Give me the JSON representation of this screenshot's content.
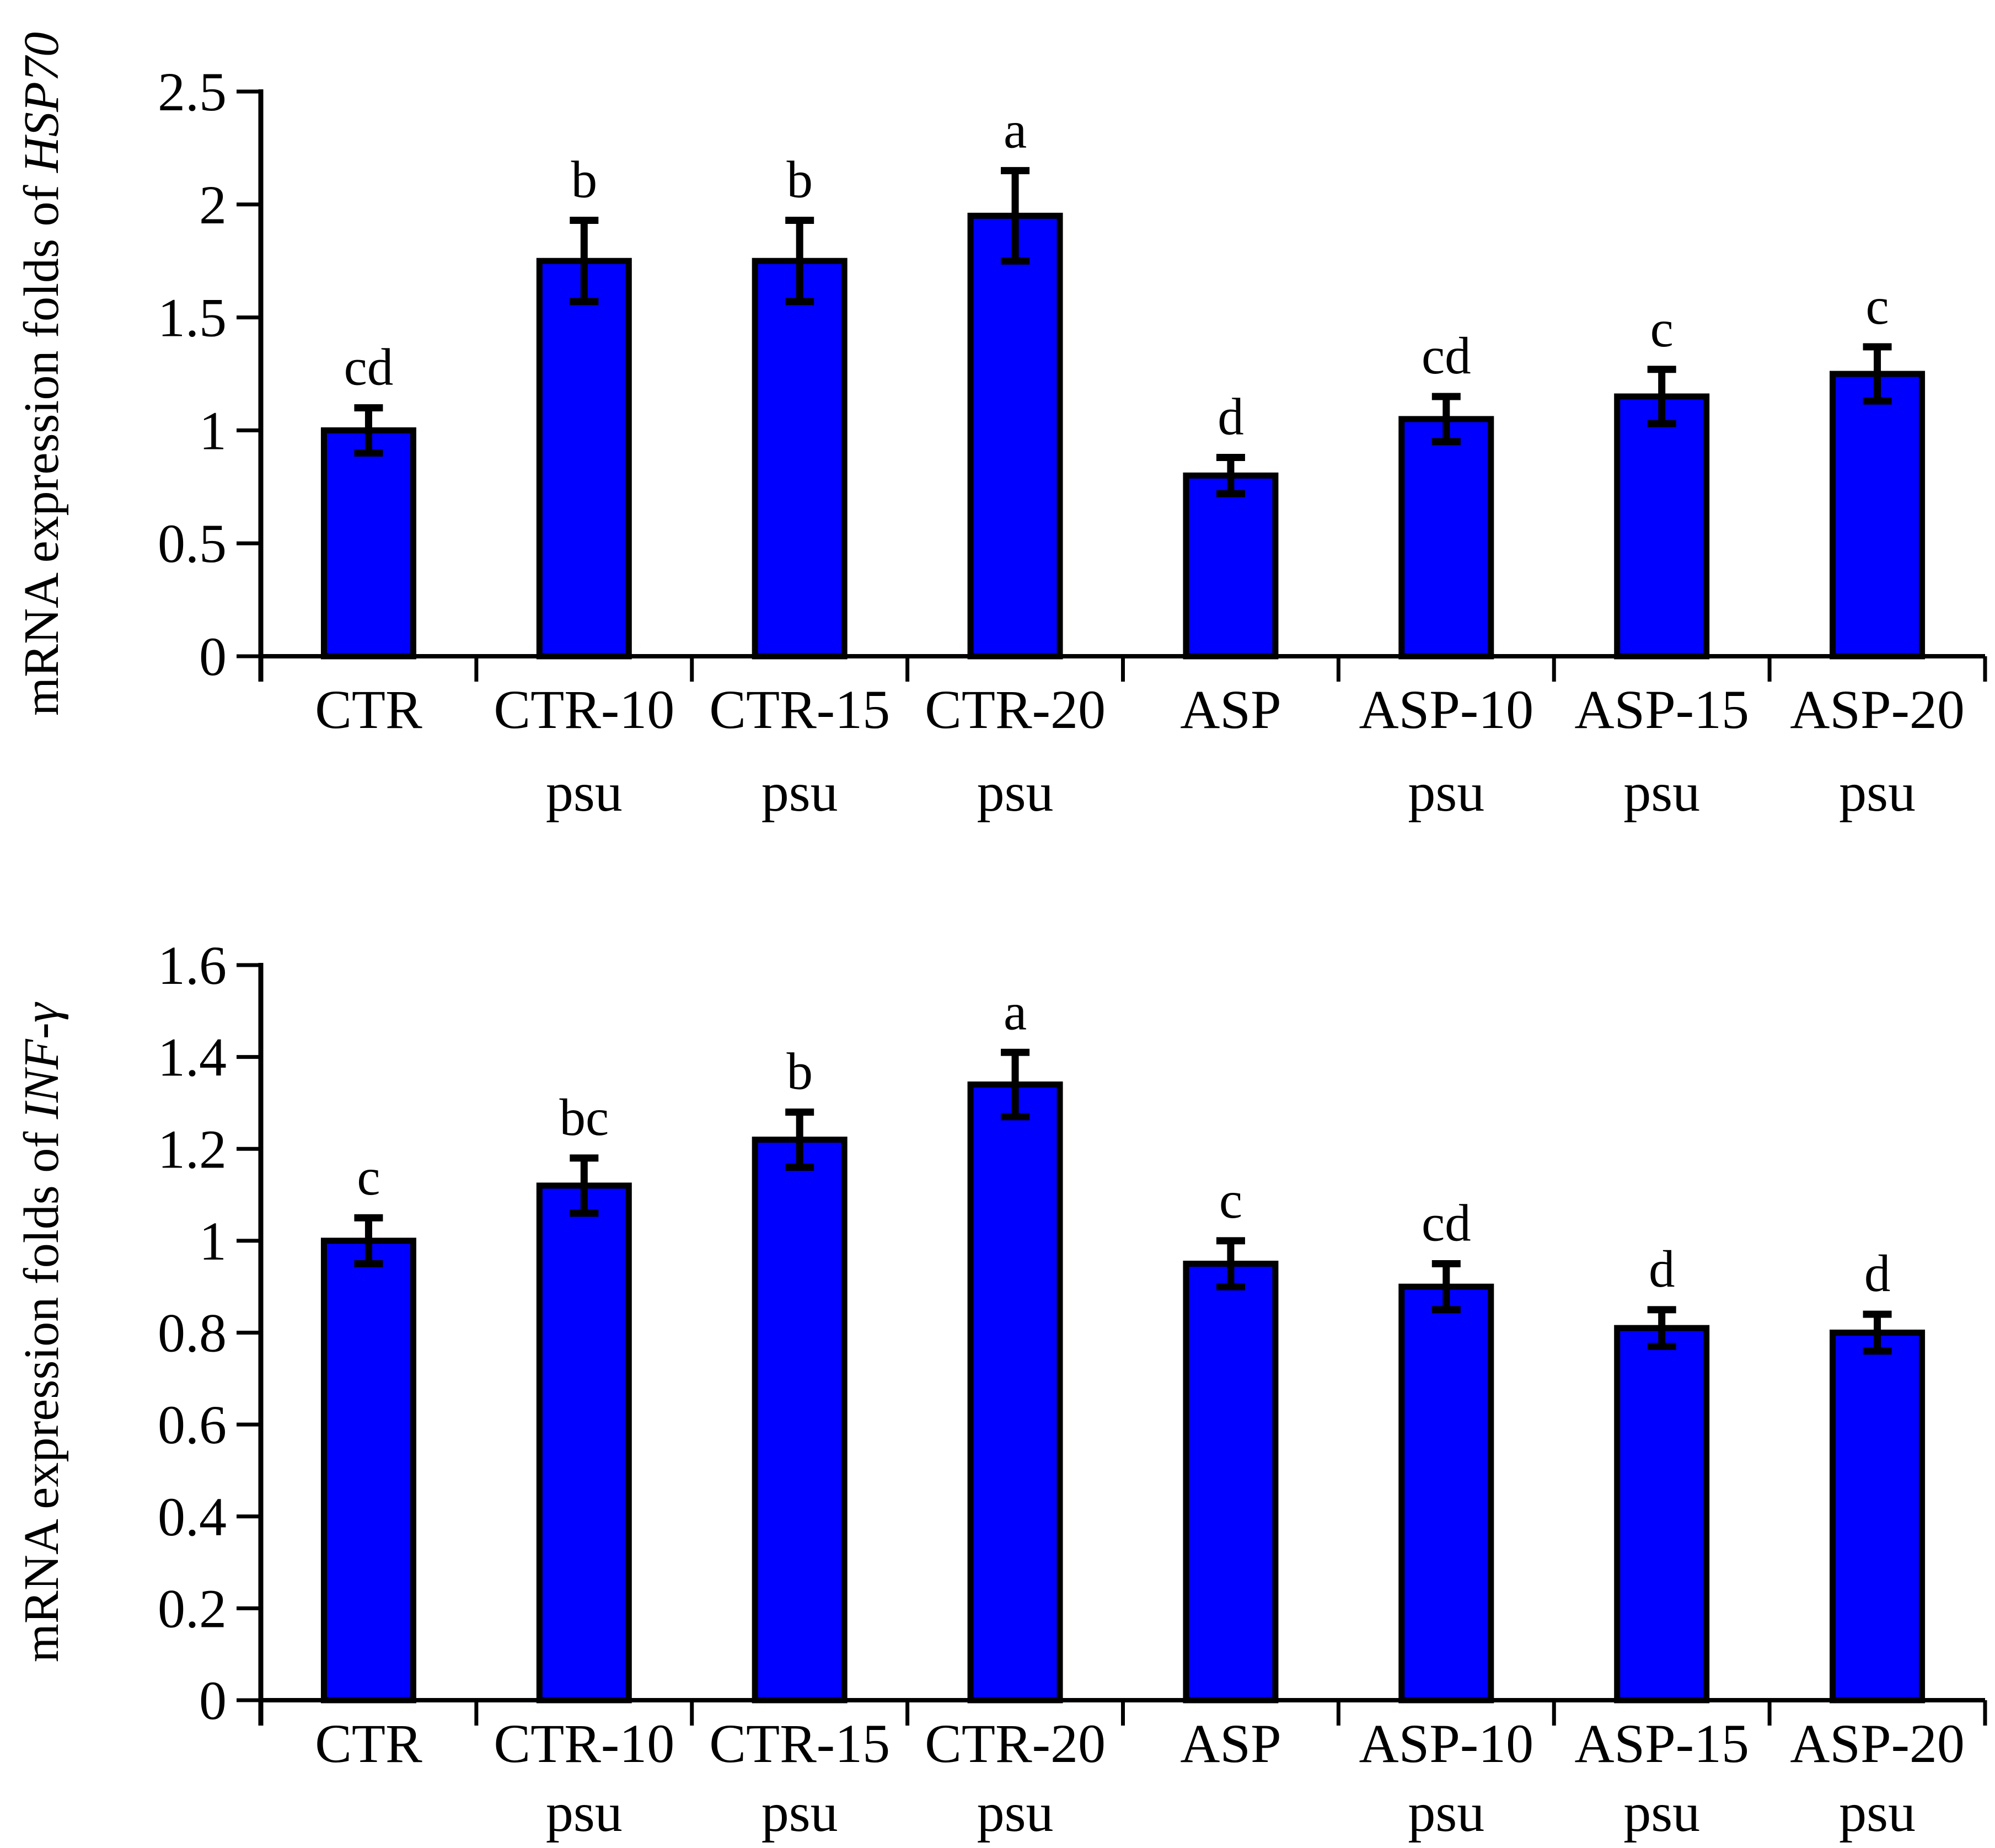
{
  "page": {
    "background": "#ffffff",
    "text_color": "#000000"
  },
  "chart_data": [
    {
      "type": "bar",
      "name": "hsp70",
      "title": "",
      "ylabel_prefix": "mRNA expression folds of ",
      "ylabel_italic": "HSP70",
      "xlabel": "",
      "categories": [
        [
          "CTR"
        ],
        [
          "CTR-10",
          "psu"
        ],
        [
          "CTR-15",
          "psu"
        ],
        [
          "CTR-20",
          "psu"
        ],
        [
          "ASP"
        ],
        [
          "ASP-10",
          "psu"
        ],
        [
          "ASP-15",
          "psu"
        ],
        [
          "ASP-20",
          "psu"
        ]
      ],
      "values": [
        1.0,
        1.75,
        1.75,
        1.95,
        0.8,
        1.05,
        1.15,
        1.25
      ],
      "errors": [
        0.1,
        0.18,
        0.18,
        0.2,
        0.08,
        0.1,
        0.12,
        0.12
      ],
      "sig_letters": [
        "cd",
        "b",
        "b",
        "a",
        "d",
        "cd",
        "c",
        "c"
      ],
      "ylim": [
        0,
        2.5
      ],
      "ytick_step": 0.5,
      "ytick_labels": [
        "0",
        "0.5",
        "1",
        "1.5",
        "2",
        "2.5"
      ],
      "grid": false,
      "legend": "none",
      "bar_color": "#0000FF",
      "bar_border_color": "#000000",
      "error_bar_color": "#000000",
      "axis_color": "#000000"
    },
    {
      "type": "bar",
      "name": "infg",
      "title": "",
      "ylabel_prefix": "mRNA expression folds of ",
      "ylabel_italic": "INF-γ",
      "xlabel": "",
      "categories": [
        [
          "CTR"
        ],
        [
          "CTR-10",
          "psu"
        ],
        [
          "CTR-15",
          "psu"
        ],
        [
          "CTR-20",
          "psu"
        ],
        [
          "ASP"
        ],
        [
          "ASP-10",
          "psu"
        ],
        [
          "ASP-15",
          "psu"
        ],
        [
          "ASP-20",
          "psu"
        ]
      ],
      "values": [
        1.0,
        1.12,
        1.22,
        1.34,
        0.95,
        0.9,
        0.81,
        0.8
      ],
      "errors": [
        0.05,
        0.06,
        0.06,
        0.07,
        0.05,
        0.05,
        0.04,
        0.04
      ],
      "sig_letters": [
        "c",
        "bc",
        "b",
        "a",
        "c",
        "cd",
        "d",
        "d"
      ],
      "ylim": [
        0,
        1.6
      ],
      "ytick_step": 0.2,
      "ytick_labels": [
        "0",
        "0.2",
        "0.4",
        "0.6",
        "0.8",
        "1",
        "1.2",
        "1.4",
        "1.6"
      ],
      "grid": false,
      "legend": "none",
      "bar_color": "#0000FF",
      "bar_border_color": "#000000",
      "error_bar_color": "#000000",
      "axis_color": "#000000"
    }
  ]
}
